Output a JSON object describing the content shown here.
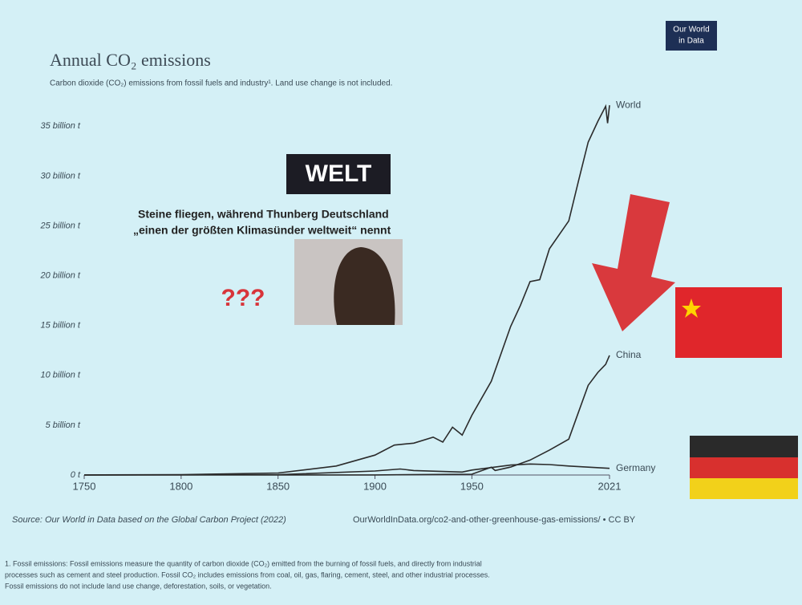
{
  "chart_data": {
    "type": "line",
    "title": "Annual CO₂ emissions",
    "subtitle": "Carbon dioxide (CO₂) emissions from fossil fuels and industry¹. Land use change is not included.",
    "logo": [
      "Our World",
      "in Data"
    ],
    "xlim": [
      1750,
      2021
    ],
    "xticks": [
      1750,
      1800,
      1850,
      1900,
      1950,
      2021
    ],
    "ylim": [
      0,
      38
    ],
    "yticks": [
      {
        "value": 0,
        "label": "0 t"
      },
      {
        "value": 5,
        "label": "5 billion t"
      },
      {
        "value": 10,
        "label": "10 billion t"
      },
      {
        "value": 15,
        "label": "15 billion t"
      },
      {
        "value": 20,
        "label": "20 billion t"
      },
      {
        "value": 25,
        "label": "25 billion t"
      },
      {
        "value": 30,
        "label": "30 billion t"
      },
      {
        "value": 35,
        "label": "35 billion t"
      }
    ],
    "grid": false,
    "series": [
      {
        "name": "World",
        "color": "#2b2b2b",
        "x": [
          1750,
          1800,
          1850,
          1880,
          1900,
          1910,
          1920,
          1930,
          1935,
          1940,
          1945,
          1950,
          1960,
          1970,
          1975,
          1980,
          1985,
          1990,
          2000,
          2005,
          2010,
          2015,
          2019,
          2020,
          2021
        ],
        "values": [
          0.01,
          0.03,
          0.2,
          0.9,
          2,
          3,
          3.2,
          3.8,
          3.3,
          4.8,
          4,
          6,
          9.4,
          14.9,
          17,
          19.4,
          19.6,
          22.7,
          25.5,
          29.5,
          33.4,
          35.5,
          37,
          35.3,
          37.1
        ]
      },
      {
        "name": "China",
        "color": "#2b2b2b",
        "x": [
          1750,
          1900,
          1950,
          1960,
          1962,
          1970,
          1980,
          1990,
          2000,
          2005,
          2010,
          2015,
          2019,
          2021
        ],
        "values": [
          0,
          0.01,
          0.08,
          0.78,
          0.45,
          0.8,
          1.5,
          2.5,
          3.6,
          6.3,
          9,
          10.3,
          11.1,
          12
        ]
      },
      {
        "name": "Germany",
        "color": "#2b2b2b",
        "x": [
          1750,
          1850,
          1900,
          1913,
          1920,
          1945,
          1950,
          1970,
          1980,
          1990,
          2000,
          2021
        ],
        "values": [
          0,
          0.03,
          0.4,
          0.6,
          0.45,
          0.3,
          0.5,
          1.0,
          1.1,
          1.05,
          0.9,
          0.67
        ]
      }
    ],
    "annotations": {
      "newspaper": "WELT",
      "headline": [
        "Steine fliegen, während Thunberg Deutschland",
        "„einen der größten Klimasünder weltweit“ nennt"
      ],
      "question": "???"
    },
    "source": "Source: Our World in Data based on the Global Carbon Project (2022)",
    "link": "OurWorldInData.org/co2-and-other-greenhouse-gas-emissions/ • CC BY",
    "footnote": [
      "1. Fossil emissions: Fossil emissions measure the quantity of carbon dioxide (CO₂) emitted from the burning of fossil fuels, and directly from industrial",
      "processes such as cement and steel production. Fossil CO₂ includes emissions from coal, oil, gas, flaring, cement, steel, and other industrial processes.",
      "Fossil emissions do not include land use change, deforestation, soils, or vegetation."
    ]
  }
}
